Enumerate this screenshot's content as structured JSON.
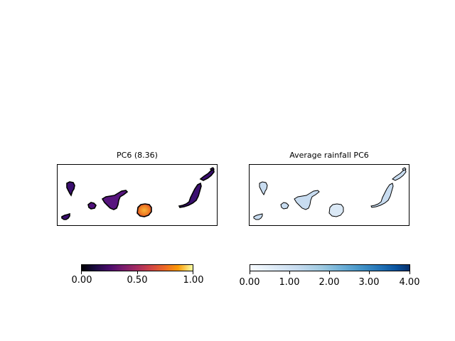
{
  "left_panel": {
    "title": "PC6 (8.36)",
    "colormap": "inferno",
    "colorbar_ticks": [
      "0.00",
      "0.50",
      "1.00"
    ],
    "islands": [
      {
        "name": "La Palma",
        "value": 0.18
      },
      {
        "name": "El Hierro",
        "value": 0.18
      },
      {
        "name": "La Gomera",
        "value": 0.28
      },
      {
        "name": "Tenerife",
        "value": 0.33
      },
      {
        "name": "Gran Canaria",
        "value": 0.75
      },
      {
        "name": "Fuerteventura",
        "value": 0.22
      },
      {
        "name": "Lanzarote",
        "value": 0.22
      }
    ]
  },
  "right_panel": {
    "title": "Average rainfall PC6",
    "colormap": "Blues",
    "colorbar_ticks": [
      "0.00",
      "1.00",
      "2.00",
      "3.00",
      "4.00"
    ],
    "islands": [
      {
        "name": "La Palma",
        "value": 0.8
      },
      {
        "name": "El Hierro",
        "value": 0.8
      },
      {
        "name": "La Gomera",
        "value": 0.8
      },
      {
        "name": "Tenerife",
        "value": 0.8
      },
      {
        "name": "Gran Canaria",
        "value": 0.6
      },
      {
        "name": "Fuerteventura",
        "value": 0.8
      },
      {
        "name": "Lanzarote",
        "value": 0.8
      }
    ]
  },
  "colors": {
    "inferno_low": "#000004",
    "inferno_island": "#3b0f70",
    "inferno_mid": "#51127c",
    "gran_canaria_center": "#f8b43a",
    "gran_canaria_edge": "#e5622a",
    "blues_island": "#c8dcf0",
    "blues_light": "#dbe9f6",
    "outline": "#000000"
  }
}
